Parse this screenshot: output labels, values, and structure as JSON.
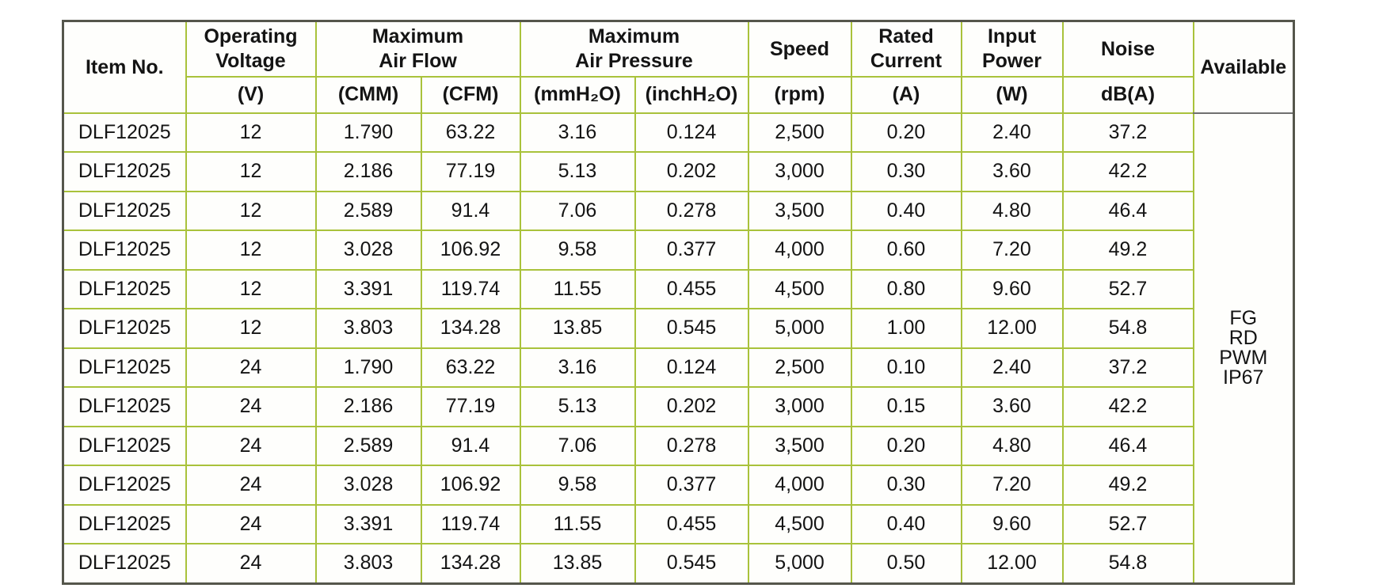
{
  "table": {
    "header": {
      "item_no": "Item No.",
      "groups": [
        {
          "label": "Operating\nVoltage",
          "subs": [
            "(V)"
          ]
        },
        {
          "label": "Maximum\nAir Flow",
          "subs": [
            "(CMM)",
            "(CFM)"
          ]
        },
        {
          "label": "Maximum\nAir Pressure",
          "subs": [
            "(mmH₂O)",
            "(inchH₂O)"
          ]
        },
        {
          "label": "Speed",
          "subs": [
            "(rpm)"
          ]
        },
        {
          "label": "Rated\nCurrent",
          "subs": [
            "(A)"
          ]
        },
        {
          "label": "Input\nPower",
          "subs": [
            "(W)"
          ]
        },
        {
          "label": "Noise",
          "subs": [
            "dB(A)"
          ]
        }
      ],
      "available": "Available"
    },
    "rows": [
      [
        "DLF12025",
        "12",
        "1.790",
        "63.22",
        "3.16",
        "0.124",
        "2,500",
        "0.20",
        "2.40",
        "37.2"
      ],
      [
        "DLF12025",
        "12",
        "2.186",
        "77.19",
        "5.13",
        "0.202",
        "3,000",
        "0.30",
        "3.60",
        "42.2"
      ],
      [
        "DLF12025",
        "12",
        "2.589",
        "91.4",
        "7.06",
        "0.278",
        "3,500",
        "0.40",
        "4.80",
        "46.4"
      ],
      [
        "DLF12025",
        "12",
        "3.028",
        "106.92",
        "9.58",
        "0.377",
        "4,000",
        "0.60",
        "7.20",
        "49.2"
      ],
      [
        "DLF12025",
        "12",
        "3.391",
        "119.74",
        "11.55",
        "0.455",
        "4,500",
        "0.80",
        "9.60",
        "52.7"
      ],
      [
        "DLF12025",
        "12",
        "3.803",
        "134.28",
        "13.85",
        "0.545",
        "5,000",
        "1.00",
        "12.00",
        "54.8"
      ],
      [
        "DLF12025",
        "24",
        "1.790",
        "63.22",
        "3.16",
        "0.124",
        "2,500",
        "0.10",
        "2.40",
        "37.2"
      ],
      [
        "DLF12025",
        "24",
        "2.186",
        "77.19",
        "5.13",
        "0.202",
        "3,000",
        "0.15",
        "3.60",
        "42.2"
      ],
      [
        "DLF12025",
        "24",
        "2.589",
        "91.4",
        "7.06",
        "0.278",
        "3,500",
        "0.20",
        "4.80",
        "46.4"
      ],
      [
        "DLF12025",
        "24",
        "3.028",
        "106.92",
        "9.58",
        "0.377",
        "4,000",
        "0.30",
        "7.20",
        "49.2"
      ],
      [
        "DLF12025",
        "24",
        "3.391",
        "119.74",
        "11.55",
        "0.455",
        "4,500",
        "0.40",
        "9.60",
        "52.7"
      ],
      [
        "DLF12025",
        "24",
        "3.803",
        "134.28",
        "13.85",
        "0.545",
        "5,000",
        "0.50",
        "12.00",
        "54.8"
      ]
    ],
    "available_options": [
      "FG",
      "RD",
      "PWM",
      "IP67"
    ],
    "colors": {
      "grid_line": "#a9c23b",
      "outer_border": "#55564c",
      "available_separator": "#6f6f6f",
      "text": "#141414",
      "cell_background": "#fefefc"
    }
  }
}
